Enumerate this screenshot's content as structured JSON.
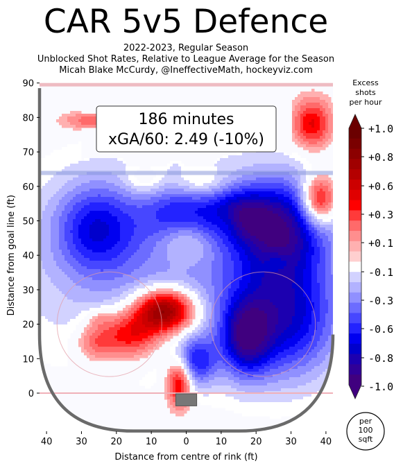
{
  "header": {
    "title": "CAR 5v5 Defence",
    "subtitle_lines": [
      "2022-2023, Regular Season",
      "Unblocked Shot Rates, Relative to League Average for the Season",
      "Micah Blake McCurdy, @IneffectiveMath, hockeyviz.com"
    ]
  },
  "chart_data": {
    "type": "heatmap",
    "title": "CAR 5v5 Defence",
    "xlabel": "Distance from centre of rink (ft)",
    "ylabel": "Distance from goal line (ft)",
    "xlim": [
      42,
      -42
    ],
    "ylim": [
      -11,
      90
    ],
    "x_ticks": [
      40,
      30,
      20,
      10,
      0,
      10,
      20,
      30,
      40
    ],
    "y_ticks": [
      0,
      10,
      20,
      30,
      40,
      50,
      60,
      70,
      80,
      90
    ],
    "annotation": {
      "minutes": "186 minutes",
      "xga": "xGA/60: 2.49 (-10%)"
    },
    "colorbar": {
      "label_lines": [
        "Excess",
        "shots",
        "per hour"
      ],
      "ticks": [
        "+1.0",
        "+0.8",
        "+0.6",
        "+0.3",
        "+0.1",
        "-0.1",
        "-0.3",
        "-0.6",
        "-0.8",
        "-1.0"
      ],
      "unit_lines": [
        "per",
        "100",
        "sqft"
      ],
      "colors": [
        "#6b0000",
        "#7a0000",
        "#8c0000",
        "#a00000",
        "#b40000",
        "#cc0000",
        "#e00000",
        "#ff0000",
        "#ff3a3a",
        "#ff6a6a",
        "#ff8e8e",
        "#ffb0b0",
        "#ffcfcf",
        "#ffffff",
        "#d2d2ff",
        "#b2b2ff",
        "#9090ff",
        "#6c6cff",
        "#4747ff",
        "#2323ff",
        "#0000f0",
        "#0000cc",
        "#1c00b0",
        "#300098",
        "#40007f"
      ]
    },
    "regions": [
      {
        "x": 0,
        "y": 38,
        "value": -0.35,
        "sx": 34,
        "sy": 20
      },
      {
        "x": 27,
        "y": 48,
        "value": -0.7,
        "sx": 9,
        "sy": 10
      },
      {
        "x": -26,
        "y": 48,
        "value": -0.5,
        "sx": 8,
        "sy": 9
      },
      {
        "x": 29,
        "y": 21,
        "value": -0.6,
        "sx": 10,
        "sy": 12
      },
      {
        "x": 17,
        "y": 16,
        "value": -0.65,
        "sx": 5,
        "sy": 8
      },
      {
        "x": 3,
        "y": 9,
        "value": -0.5,
        "sx": 4,
        "sy": 5
      },
      {
        "x": -1,
        "y": 51,
        "value": -0.45,
        "sx": 8,
        "sy": 6
      },
      {
        "x": 15,
        "y": 52,
        "value": -0.45,
        "sx": 6,
        "sy": 5
      },
      {
        "x": -6,
        "y": 24,
        "value": 1.0,
        "sx": 6,
        "sy": 4.5
      },
      {
        "x": -2,
        "y": 3,
        "value": 0.6,
        "sx": 2.5,
        "sy": 5
      },
      {
        "x": -16,
        "y": 17,
        "value": 0.55,
        "sx": 6,
        "sy": 5
      },
      {
        "x": -26,
        "y": 15,
        "value": 0.3,
        "sx": 4,
        "sy": 4
      },
      {
        "x": 0,
        "y": 45,
        "value": 0.35,
        "sx": 6,
        "sy": 5
      },
      {
        "x": 38,
        "y": 56,
        "value": 0.7,
        "sx": 3.5,
        "sy": 5
      },
      {
        "x": 36,
        "y": 78,
        "value": 0.5,
        "sx": 4,
        "sy": 5
      },
      {
        "x": -26,
        "y": 79,
        "value": 0.3,
        "sx": 7,
        "sy": 2
      },
      {
        "x": 12,
        "y": 50,
        "value": 0.15,
        "sx": 3,
        "sy": 3
      },
      {
        "x": 4,
        "y": 61,
        "value": 0.2,
        "sx": 5,
        "sy": 3
      },
      {
        "x": -12,
        "y": 62,
        "value": 0.2,
        "sx": 4,
        "sy": 3
      },
      {
        "x": -25,
        "y": 22,
        "value": 0.15,
        "sx": 3,
        "sy": 2
      },
      {
        "x": 26,
        "y": 38,
        "value": 0.15,
        "sx": 2.5,
        "sy": 2
      }
    ]
  }
}
